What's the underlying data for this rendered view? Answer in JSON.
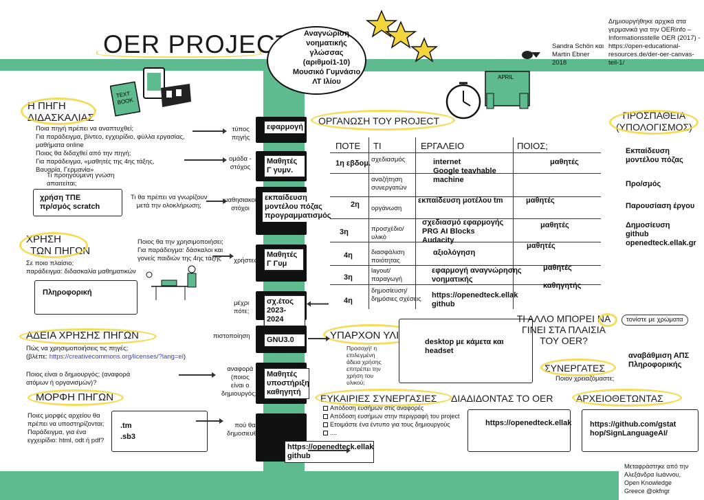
{
  "header": {
    "title": "OER PROJECT",
    "bubble": [
      "Αναγνώριση",
      "νοηματικής",
      "γλώσσας",
      "(αριθμοί1-10)",
      "Μουσικό Γυμνάσιο",
      "ΛΤ Ιλίου"
    ],
    "authors": [
      "Sandra Schön και",
      "Martin Ebner",
      "2018"
    ],
    "credit": [
      "Δημιουργήθηκε αρχικά στα",
      "γερμανικά για την OERinfo –",
      "Informationsstelle OER (2017) -",
      "https://open-educational-",
      "resources.de/der-oer-canvas-",
      "teil-1/"
    ],
    "clock_label": "APRIL"
  },
  "left": {
    "source_heading": [
      "Η ΠΗΓΗ",
      "ΔΙΔΑΣΚΑΛΙΑΣ"
    ],
    "source_q1": [
      "Ποια πηγή πρέπει να αναπτυχθεί;",
      "Για παράδειγμα, βίντεο, εγχειρίδιο, φύλλα εργασίας,",
      "μαθήματα online"
    ],
    "source_q2": [
      "Ποιος θα διδαχθεί από την πηγή;",
      "Για παράδειγμα, «μαθητές της 4ης τάξης,",
      "Βαυαρία, Γερμανία»"
    ],
    "source_q3": [
      "Τι προηγούμενη γνώση",
      "απαιτείται;"
    ],
    "prior_answer": [
      "χρήση ΤΠΕ",
      "πρ/σμός scratch"
    ],
    "learn_q": [
      "Τι θα πρέπει να γνωρίζουν",
      "μετά την ολοκλήρωση;"
    ],
    "use_heading": [
      "ΧΡΗΣΗ",
      "ΤΩΝ ΠΗΓΩΝ"
    ],
    "use_q1": [
      "Σε ποιο πλαίσιο;",
      "παράδειγμα: διδασκαλία μαθηματικών"
    ],
    "use_answer": "Πληροφορική",
    "use_q2": [
      "Ποιος θα την χρησιμοποιήσει;",
      "Για παράδειγμα: δάσκαλοι και",
      "γονείς παιδιών της 4ης τάξης"
    ],
    "license_heading": "ΑΔΕΙΑ ΧΡΗΣΗΣ ΠΗΓΩΝ",
    "license_q": [
      "Πώς να χρησιμοποιήσεις τις πηγές;"
    ],
    "license_link_prefix": "(βλέπε: ",
    "license_link": "https://creativecommons.org/licenses/?lang=el",
    "license_link_suffix": ")",
    "creator_q": [
      "Ποιος είναι ο δημιουργός; (αναφορά",
      "ατόμων ή οργανισμών)?"
    ],
    "form_heading": "ΜΟΡΦΗ ΠΗΓΩΝ",
    "form_q": [
      "Ποιες μορφές αρχείου θα",
      "πρέπει να υποστηρίζονται;",
      "Παράδειγμα, για ένα",
      "εγχειρίδιο: html, odt ή pdf?"
    ],
    "form_answer": [
      ".tm",
      ".sb3"
    ]
  },
  "middle": {
    "labels": [
      [
        "τύπος",
        "πηγής"
      ],
      [
        "ομάδα -",
        "στόχος"
      ],
      [
        "μαθησιακοί",
        "στόχοι"
      ],
      [
        "χρήστες"
      ],
      [
        "μέχρι",
        "πότε;"
      ],
      [
        "πιστοποίηση"
      ],
      [
        "αναφορά",
        "(ποιος",
        "είναι ο",
        "δημιουργός;)"
      ],
      [
        "πού θα",
        "δημοσιευθεί;"
      ]
    ],
    "tabs": [
      [
        "εφαρμογή"
      ],
      [
        "Μαθητές",
        "Γ γυμν."
      ],
      [
        "εκπαίδευση",
        "μοντέλου πόζας",
        "προγραμματισμός"
      ],
      [
        "Μαθητές",
        "Γ Γυμ"
      ],
      [
        "σχ.έτος",
        "2023-2024"
      ],
      [
        "GNU3.0"
      ],
      [
        "Μαθητές",
        "υποστήριξη",
        "καθηγητή"
      ],
      [
        "https://openedteck.ellak",
        "github"
      ]
    ]
  },
  "project": {
    "heading": "ΟΡΓΑΝΩΣΗ ΤΟΥ PROJECT",
    "columns": [
      "ΠΟΤΕ",
      "ΤΙ",
      "ΕΡΓΑΛΕΙΟ",
      "ΠΟΙΟΣ;"
    ],
    "when": [
      "1η εβδομ.",
      "2η",
      "3η",
      "4η",
      "3η",
      "4η"
    ],
    "what": [
      [
        "σχεδιασμός"
      ],
      [
        "αναζήτηση",
        "συνεργατών"
      ],
      [
        "οργάνωση"
      ],
      [
        "προσχέδιο/",
        "υλικό"
      ],
      [
        "διασφάλιση",
        "ποιότητας"
      ],
      [
        "layout/",
        "παραγωγή"
      ],
      [
        "δημοσίευση/",
        "δημόσιες σχέσεις"
      ]
    ],
    "tools": [
      [
        "internet",
        "Google teavhable",
        "machine"
      ],
      [
        "εκπαίδευση μοτέλου tm"
      ],
      [
        "σχεδιασμό εφαρμογής",
        "PRG AI Blocks",
        "Audacity"
      ],
      [
        "αξιολόγηση"
      ],
      [
        "εφαρμογή αναγνώρησης",
        "νοηματικής"
      ],
      [
        "https://openedteck.ellak",
        "github"
      ]
    ],
    "who": [
      "μαθητές",
      "μαθητές",
      "μαθητές",
      "μαθητές",
      "μαθητές",
      "καθηγητής"
    ]
  },
  "effort": {
    "heading": [
      "ΠΡΟΣΠΑΘΕΙΑ",
      "(ΥΠΟΛΟΓΙΣΜΟΣ)"
    ],
    "items": [
      [
        "Εκπαίδευση",
        "μοντέλου πόζας"
      ],
      [
        "Προ/σμός"
      ],
      [
        "Παρουσίαση έργου"
      ],
      [
        "Δημοσίευση",
        "github",
        "openedteck.ellak.gr"
      ]
    ]
  },
  "existing": {
    "heading": "ΥΠΑΡΧΟΝ ΥΛΙΚΟ",
    "vertical1": "Προσοχή! η επιλεγμένη άδεια χρήσης επιτρέπει την χρήση του υλικού;",
    "answer": [
      "desktop με κάμετα και",
      "headset"
    ]
  },
  "other": {
    "heading": [
      "ΤΙ ΑΛΛΟ ΜΠΟΡΕΙ ΝΑ",
      "ΓΙΝΕΙ ΣΤΑ ΠΛΑΙΣΙΑ",
      "ΤΟΥ OER?"
    ],
    "note": "τονίστε με χρώματα"
  },
  "partners": {
    "heading": "ΣΥΝΕΡΓΑΤΕΣ",
    "sub": "Ποιον χρειαζόμαστε;",
    "answer": [
      "αναβάθμιση ΑΠΣ",
      "Πληροφορικής"
    ]
  },
  "coop": {
    "heading": "ΕΥΚΑΙΡΙΕΣ ΣΥΝΕΡΓΑΣΙΕΣ",
    "items": [
      "Απόδοση ευσήμων στις αναφορές",
      "Απόδοση ευσήμων στην περιγραφή του project",
      "Ετοιμάστε ένα έντυπο για τους δημιουργούς",
      "...."
    ]
  },
  "distribute": {
    "heading": "ΔΙΑΔΙΔΟΝΤΑΣ ΤΟ OER",
    "answer": "https://openedteck.ellak"
  },
  "archive": {
    "heading": "ΑΡΧΕΙΟΘΕΤΩΝΤΑΣ",
    "answer": [
      "https://github.com/gstat",
      "hop/SignLanguageAI/"
    ]
  },
  "translation": [
    "Μεταφράστηκε από την",
    "Αλεξάνδρα Ιωάννου,",
    "Open Knowledge",
    "Greece @okfngr"
  ],
  "colors": {
    "green": "#5dbb8f",
    "yellow": "#f3d53b",
    "ink": "#111111"
  }
}
